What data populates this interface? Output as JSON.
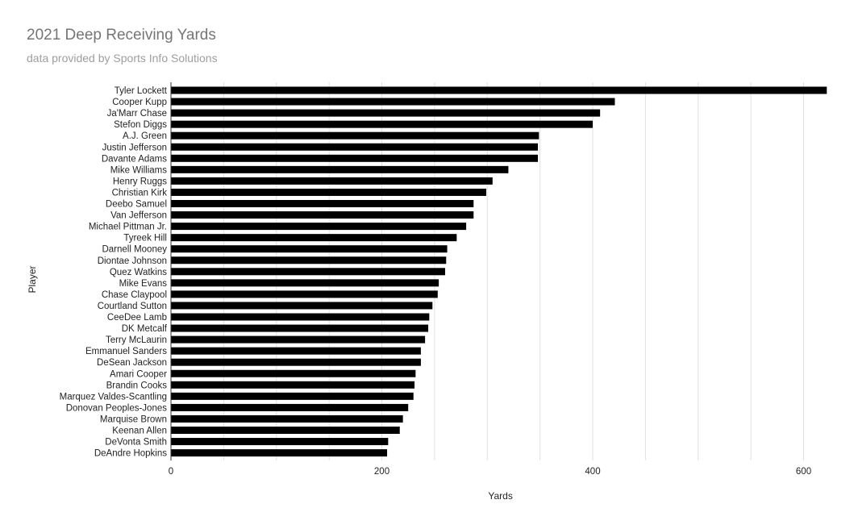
{
  "chart_data": {
    "type": "bar",
    "orientation": "horizontal",
    "title": "2021 Deep Receiving Yards",
    "subtitle": "data provided by Sports Info Solutions",
    "xlabel": "Yards",
    "ylabel": "Player",
    "xlim": [
      0,
      625
    ],
    "x_ticks": [
      0,
      200,
      400,
      600
    ],
    "grid": true,
    "bar_color": "#000000",
    "categories": [
      "Tyler Lockett",
      "Cooper Kupp",
      "Ja'Marr Chase",
      "Stefon Diggs",
      "A.J. Green",
      "Justin Jefferson",
      "Davante Adams",
      "Mike Williams",
      "Henry Ruggs",
      "Christian Kirk",
      "Deebo Samuel",
      "Van Jefferson",
      "Michael Pittman Jr.",
      "Tyreek Hill",
      "Darnell Mooney",
      "Diontae Johnson",
      "Quez Watkins",
      "Mike Evans",
      "Chase Claypool",
      "Courtland Sutton",
      "CeeDee Lamb",
      "DK Metcalf",
      "Terry McLaurin",
      "Emmanuel Sanders",
      "DeSean Jackson",
      "Amari Cooper",
      "Brandin Cooks",
      "Marquez Valdes-Scantling",
      "Donovan Peoples-Jones",
      "Marquise Brown",
      "Keenan Allen",
      "DeVonta Smith",
      "DeAndre Hopkins"
    ],
    "values": [
      622,
      421,
      407,
      400,
      349,
      348,
      348,
      320,
      305,
      299,
      287,
      287,
      280,
      271,
      262,
      261,
      260,
      254,
      253,
      248,
      245,
      244,
      241,
      237,
      237,
      232,
      231,
      230,
      225,
      220,
      217,
      206,
      205
    ]
  }
}
